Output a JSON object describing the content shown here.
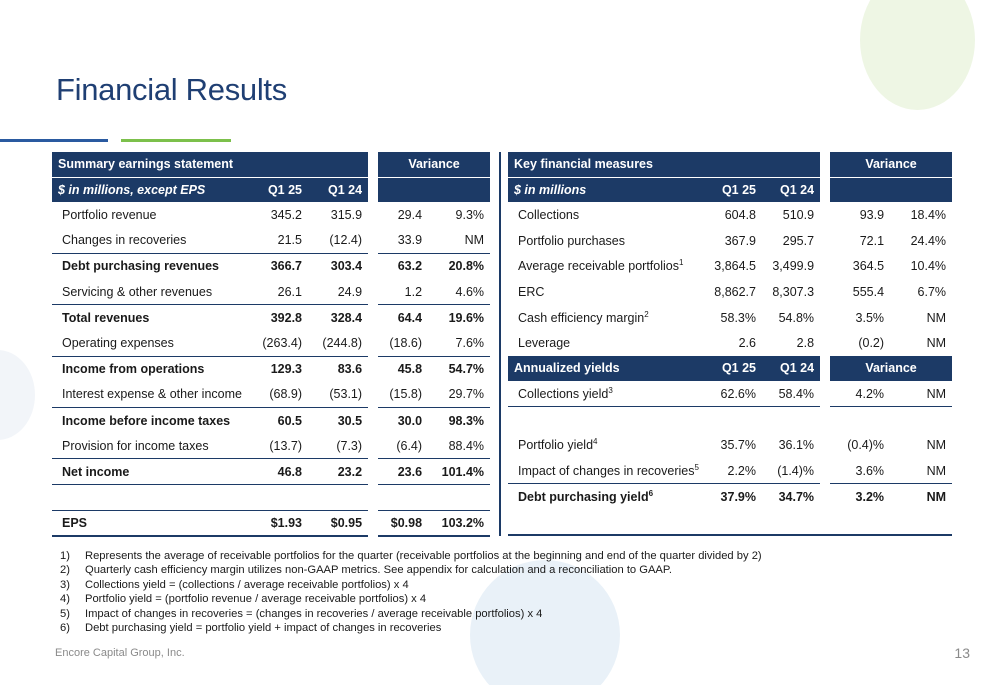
{
  "title": "Financial Results",
  "left": {
    "header1": {
      "label": "Summary earnings statement",
      "variance": "Variance"
    },
    "header2": {
      "label": "$ in millions, except EPS",
      "q1": "Q1 25",
      "q2": "Q1 24"
    },
    "rows": [
      {
        "label": "Portfolio revenue",
        "q1": "345.2",
        "q2": "315.9",
        "v1": "29.4",
        "v2": "9.3%"
      },
      {
        "label": "Changes in recoveries",
        "q1": "21.5",
        "q2": "(12.4)",
        "v1": "33.9",
        "v2": "NM"
      },
      {
        "label": "Debt purchasing revenues",
        "q1": "366.7",
        "q2": "303.4",
        "v1": "63.2",
        "v2": "20.8%"
      },
      {
        "label": "Servicing & other revenues",
        "q1": "26.1",
        "q2": "24.9",
        "v1": "1.2",
        "v2": "4.6%"
      },
      {
        "label": "Total revenues",
        "q1": "392.8",
        "q2": "328.4",
        "v1": "64.4",
        "v2": "19.6%"
      },
      {
        "label": "Operating expenses",
        "q1": "(263.4)",
        "q2": "(244.8)",
        "v1": "(18.6)",
        "v2": "7.6%"
      },
      {
        "label": "Income from operations",
        "q1": "129.3",
        "q2": "83.6",
        "v1": "45.8",
        "v2": "54.7%"
      },
      {
        "label": "Interest expense & other income",
        "q1": "(68.9)",
        "q2": "(53.1)",
        "v1": "(15.8)",
        "v2": "29.7%"
      },
      {
        "label": "Income before income taxes",
        "q1": "60.5",
        "q2": "30.5",
        "v1": "30.0",
        "v2": "98.3%"
      },
      {
        "label": "Provision for income taxes",
        "q1": "(13.7)",
        "q2": "(7.3)",
        "v1": "(6.4)",
        "v2": "88.4%"
      },
      {
        "label": "Net income",
        "q1": "46.8",
        "q2": "23.2",
        "v1": "23.6",
        "v2": "101.4%"
      },
      {
        "label": "EPS",
        "q1": "$1.93",
        "q2": "$0.95",
        "v1": "$0.98",
        "v2": "103.2%"
      }
    ]
  },
  "right": {
    "header1": {
      "label": "Key financial measures",
      "variance": "Variance"
    },
    "header2": {
      "label": "$ in millions",
      "q1": "Q1 25",
      "q2": "Q1 24"
    },
    "rows": [
      {
        "label": "Collections",
        "q1": "604.8",
        "q2": "510.9",
        "v1": "93.9",
        "v2": "18.4%"
      },
      {
        "label": "Portfolio purchases",
        "q1": "367.9",
        "q2": "295.7",
        "v1": "72.1",
        "v2": "24.4%"
      },
      {
        "label": "Average receivable portfolios",
        "sup": "1",
        "q1": "3,864.5",
        "q2": "3,499.9",
        "v1": "364.5",
        "v2": "10.4%"
      },
      {
        "label": "ERC",
        "q1": "8,862.7",
        "q2": "8,307.3",
        "v1": "555.4",
        "v2": "6.7%"
      },
      {
        "label": "Cash efficiency margin",
        "sup": "2",
        "q1": "58.3%",
        "q2": "54.8%",
        "v1": "3.5%",
        "v2": "NM"
      },
      {
        "label": "Leverage",
        "q1": "2.6",
        "q2": "2.8",
        "v1": "(0.2)",
        "v2": "NM"
      }
    ],
    "header3": {
      "label": "Annualized yields",
      "q1": "Q1 25",
      "q2": "Q1 24",
      "variance": "Variance"
    },
    "yields": [
      {
        "label": "Collections yield",
        "sup": "3",
        "q1": "62.6%",
        "q2": "58.4%",
        "v1": "4.2%",
        "v2": "NM"
      },
      {
        "label": "Portfolio yield",
        "sup": "4",
        "q1": "35.7%",
        "q2": "36.1%",
        "v1": "(0.4)%",
        "v2": "NM"
      },
      {
        "label": "Impact of changes in recoveries",
        "sup": "5",
        "q1": "2.2%",
        "q2": "(1.4)%",
        "v1": "3.6%",
        "v2": "NM"
      },
      {
        "label": "Debt purchasing yield",
        "sup": "6",
        "q1": "37.9%",
        "q2": "34.7%",
        "v1": "3.2%",
        "v2": "NM"
      }
    ]
  },
  "footnotes": [
    {
      "num": "1)",
      "text": "Represents the average of receivable portfolios for the quarter (receivable portfolios at the beginning and end of the quarter divided by 2)"
    },
    {
      "num": "2)",
      "text": "Quarterly cash efficiency margin utilizes non-GAAP metrics. See appendix for calculation and a reconciliation to GAAP."
    },
    {
      "num": "3)",
      "text": "Collections yield = (collections / average receivable portfolios) x 4"
    },
    {
      "num": "4)",
      "text": "Portfolio yield = (portfolio revenue / average receivable portfolios) x 4"
    },
    {
      "num": "5)",
      "text": "Impact of changes in recoveries = (changes in recoveries / average receivable portfolios) x 4"
    },
    {
      "num": "6)",
      "text": "Debt purchasing yield = portfolio yield + impact of changes in recoveries"
    }
  ],
  "footer": {
    "company": "Encore Capital Group, Inc.",
    "page": "13"
  },
  "colors": {
    "header_navy": "#1c3a66",
    "title_blue": "#1f3f73",
    "accent_blue": "#2a5aa0",
    "accent_green": "#7cc04b"
  }
}
